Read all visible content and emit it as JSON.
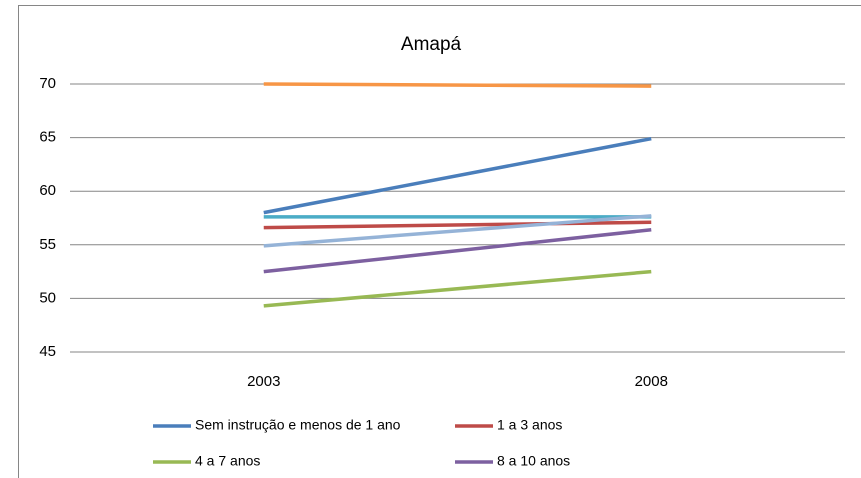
{
  "chart_data": {
    "type": "line",
    "title": "Amapá",
    "categories": [
      "2003",
      "2008"
    ],
    "series": [
      {
        "name": "Sem instrução e menos de 1 ano",
        "color": "#4a7ebb",
        "values": [
          58.0,
          64.9
        ]
      },
      {
        "name": "1 a 3 anos",
        "color": "#be4b48",
        "values": [
          56.6,
          57.1
        ]
      },
      {
        "name": "4 a 7 anos",
        "color": "#98b954",
        "values": [
          49.3,
          52.5
        ]
      },
      {
        "name": "8 a 10 anos",
        "color": "#7d60a0",
        "values": [
          52.5,
          56.4
        ]
      },
      {
        "color": "#f79646",
        "values": [
          70.0,
          69.8
        ]
      },
      {
        "color": "#4bacc6",
        "values": [
          57.6,
          57.6
        ]
      },
      {
        "color": "#95b3d7",
        "values": [
          54.9,
          57.7
        ]
      }
    ],
    "ylim": [
      45,
      70
    ],
    "yticks": [
      45,
      50,
      55,
      60,
      65,
      70
    ],
    "grid": true
  }
}
